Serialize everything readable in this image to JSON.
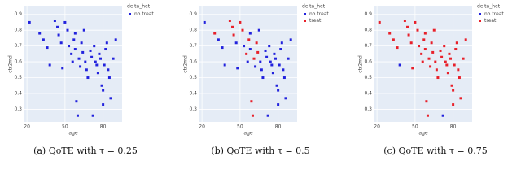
{
  "chart_data": [
    {
      "type": "scatter",
      "x_label": "age",
      "y_label": "ctr2md",
      "legend_title": "delta_het",
      "caption": "(a) QoTE with τ = 0.25",
      "xlim": [
        18,
        95
      ],
      "xticks": [
        20,
        50,
        80
      ],
      "ylim": [
        0.22,
        0.95
      ],
      "yticks": [
        0.3,
        0.4,
        0.5,
        0.6,
        0.7,
        0.8,
        0.9
      ],
      "grid": true,
      "series": [
        {
          "name": "no treat",
          "color": "#2222dd",
          "x": [
            22,
            30,
            33,
            36,
            38,
            42,
            44,
            45,
            47,
            48,
            50,
            52,
            53,
            55,
            56,
            57,
            58,
            59,
            60,
            61,
            62,
            63,
            64,
            65,
            66,
            67,
            68,
            70,
            71,
            72,
            73,
            74,
            75,
            76,
            77,
            78,
            79,
            80,
            81,
            82,
            83,
            84,
            85,
            86,
            88,
            90,
            80,
            58
          ],
          "values": [
            0.85,
            0.78,
            0.74,
            0.69,
            0.58,
            0.86,
            0.82,
            0.77,
            0.72,
            0.56,
            0.85,
            0.8,
            0.7,
            0.65,
            0.6,
            0.74,
            0.68,
            0.35,
            0.26,
            0.62,
            0.57,
            0.72,
            0.66,
            0.8,
            0.6,
            0.55,
            0.5,
            0.67,
            0.63,
            0.26,
            0.7,
            0.6,
            0.58,
            0.53,
            0.65,
            0.62,
            0.45,
            0.42,
            0.58,
            0.68,
            0.72,
            0.55,
            0.5,
            0.37,
            0.62,
            0.74,
            0.33,
            0.78
          ]
        }
      ]
    },
    {
      "type": "scatter",
      "x_label": "age",
      "y_label": "ctr2md",
      "legend_title": "delta_het",
      "caption": "(b) QoTE with τ = 0.5",
      "xlim": [
        18,
        95
      ],
      "xticks": [
        20,
        50,
        80
      ],
      "ylim": [
        0.22,
        0.95
      ],
      "yticks": [
        0.3,
        0.4,
        0.5,
        0.6,
        0.7,
        0.8,
        0.9
      ],
      "grid": true,
      "series": [
        {
          "name": "no treat",
          "color": "#2222dd",
          "x": [
            22,
            33,
            36,
            38,
            47,
            48,
            53,
            56,
            58,
            62,
            65,
            66,
            67,
            68,
            70,
            71,
            72,
            73,
            74,
            75,
            76,
            77,
            78,
            79,
            80,
            81,
            82,
            83,
            84,
            85,
            86,
            88,
            90,
            80,
            58
          ],
          "values": [
            0.85,
            0.74,
            0.69,
            0.58,
            0.72,
            0.56,
            0.7,
            0.6,
            0.68,
            0.57,
            0.8,
            0.6,
            0.55,
            0.5,
            0.67,
            0.63,
            0.26,
            0.7,
            0.6,
            0.58,
            0.53,
            0.65,
            0.62,
            0.45,
            0.42,
            0.58,
            0.68,
            0.72,
            0.55,
            0.5,
            0.37,
            0.62,
            0.74,
            0.33,
            0.78
          ]
        },
        {
          "name": "treat",
          "color": "#e8202a",
          "x": [
            30,
            42,
            44,
            45,
            50,
            52,
            55,
            57,
            59,
            60,
            61,
            63,
            64
          ],
          "values": [
            0.78,
            0.86,
            0.82,
            0.77,
            0.85,
            0.8,
            0.65,
            0.74,
            0.35,
            0.26,
            0.62,
            0.72,
            0.66
          ]
        }
      ]
    },
    {
      "type": "scatter",
      "x_label": "age",
      "y_label": "ctr2md",
      "legend_title": "delta_het",
      "caption": "(c) QoTE with τ = 0.75",
      "xlim": [
        18,
        95
      ],
      "xticks": [
        20,
        50,
        80
      ],
      "ylim": [
        0.22,
        0.95
      ],
      "yticks": [
        0.3,
        0.4,
        0.5,
        0.6,
        0.7,
        0.8,
        0.9
      ],
      "grid": true,
      "series": [
        {
          "name": "no treat",
          "color": "#2222dd",
          "x": [
            38,
            72
          ],
          "values": [
            0.58,
            0.26
          ]
        },
        {
          "name": "treat",
          "color": "#e8202a",
          "x": [
            22,
            30,
            33,
            36,
            42,
            44,
            45,
            47,
            48,
            50,
            52,
            53,
            55,
            56,
            57,
            58,
            59,
            60,
            61,
            62,
            63,
            64,
            65,
            66,
            67,
            68,
            70,
            71,
            73,
            74,
            75,
            76,
            77,
            78,
            79,
            80,
            81,
            82,
            83,
            84,
            85,
            86,
            88,
            90,
            80,
            58
          ],
          "values": [
            0.85,
            0.78,
            0.74,
            0.69,
            0.86,
            0.82,
            0.77,
            0.72,
            0.56,
            0.85,
            0.8,
            0.7,
            0.65,
            0.6,
            0.74,
            0.68,
            0.35,
            0.26,
            0.62,
            0.57,
            0.72,
            0.66,
            0.8,
            0.6,
            0.55,
            0.5,
            0.67,
            0.63,
            0.7,
            0.6,
            0.58,
            0.53,
            0.65,
            0.62,
            0.45,
            0.42,
            0.58,
            0.68,
            0.72,
            0.55,
            0.5,
            0.37,
            0.62,
            0.74,
            0.33,
            0.78
          ]
        }
      ]
    }
  ]
}
